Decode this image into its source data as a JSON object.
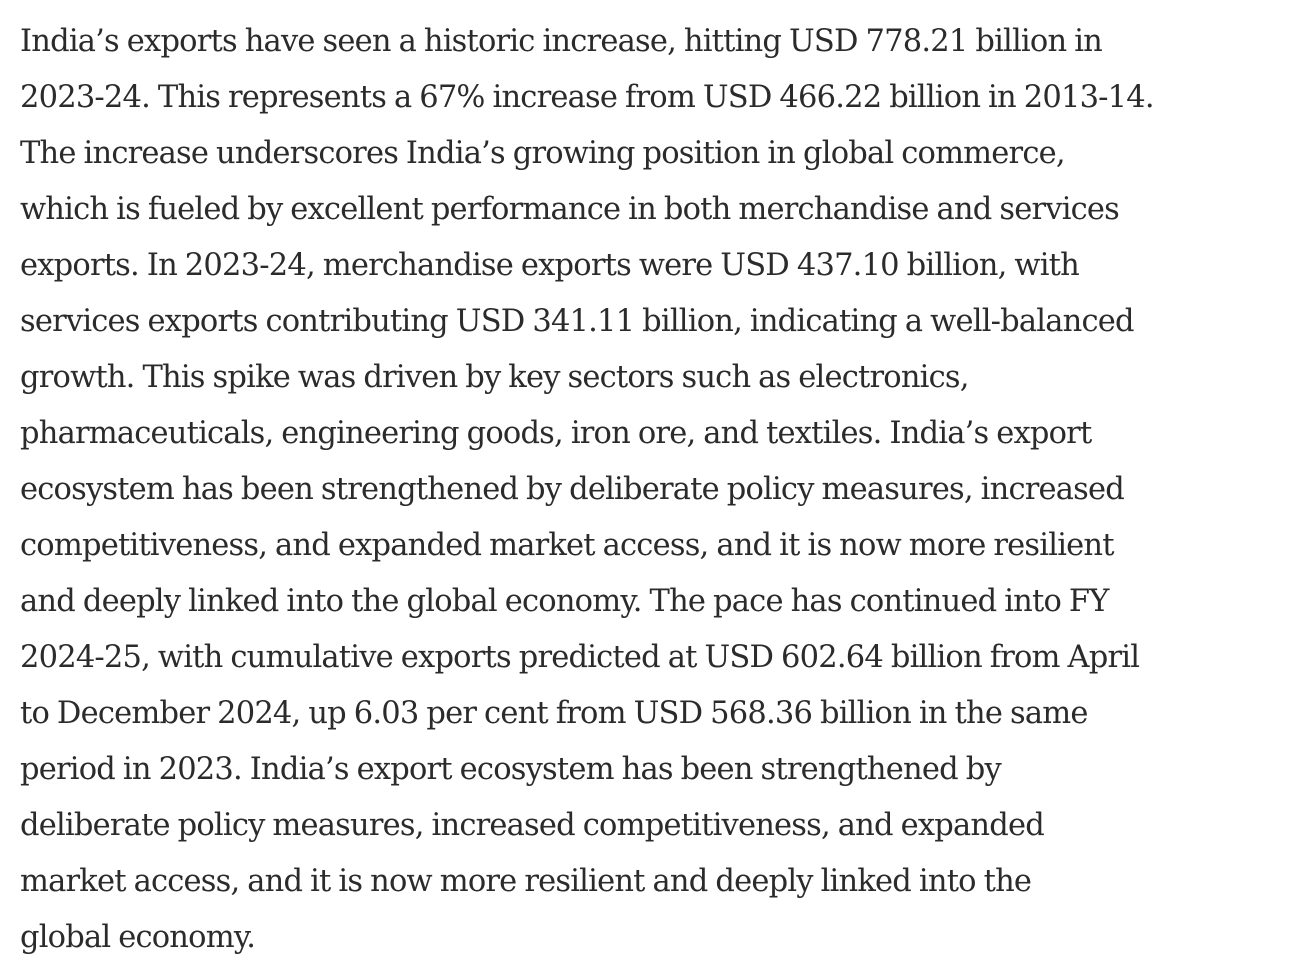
{
  "article": {
    "lines": [
      "India’s exports have seen a historic increase, hitting USD 778.21 billion in",
      "2023-24. This represents a 67% increase from USD 466.22 billion in 2013-14.",
      "The increase underscores India’s growing position in global commerce,",
      "which is fueled by excellent performance in both merchandise and services",
      "exports. In 2023-24, merchandise exports were USD 437.10 billion, with",
      "services exports contributing USD 341.11 billion, indicating a well-balanced",
      "growth. This spike was driven by key sectors such as electronics,",
      "pharmaceuticals, engineering goods, iron ore, and textiles. India’s export",
      "ecosystem has been strengthened by deliberate policy measures, increased",
      "competitiveness, and expanded market access, and it is now more resilient",
      "and deeply linked into the global economy. The pace has continued into FY",
      "2024-25, with cumulative exports predicted at USD 602.64 billion from April",
      "to December 2024, up 6.03 per cent from USD 568.36 billion in the same",
      "period in 2023. India’s export ecosystem has been strengthened by",
      "deliberate policy measures, increased competitiveness, and expanded",
      "market access, and it is now more resilient and deeply linked into the",
      "global economy."
    ]
  }
}
